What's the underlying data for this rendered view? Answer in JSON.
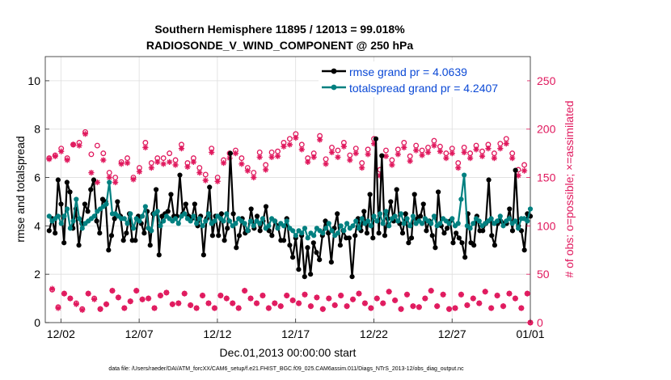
{
  "chart_data": {
    "type": "line",
    "title": "Southern Hemisphere 11895 / 12013 = 99.018%",
    "subtitle": "RADIOSONDE_V_WIND_COMPONENT @ 250 hPa",
    "xlabel": "Dec.01,2013 00:00:00 start",
    "ylabel": "rmse and totalspread",
    "y2label": "# of obs: o=possible; ×=assimilated",
    "footer": "data file: /Users/raeder/DAI/ATM_forcXX/CAM6_setup/f.e21.FHIST_BGC.f09_025.CAM6assim.011/Diags_NTrS_2013-12/obs_diag_output.nc",
    "xlim": [
      0,
      31
    ],
    "ylim": [
      0,
      11
    ],
    "y2lim": [
      0,
      275
    ],
    "x_ticks": [
      {
        "v": 1,
        "label": "12/02"
      },
      {
        "v": 6,
        "label": "12/07"
      },
      {
        "v": 11,
        "label": "12/12"
      },
      {
        "v": 16,
        "label": "12/17"
      },
      {
        "v": 21,
        "label": "12/22"
      },
      {
        "v": 26,
        "label": "12/27"
      },
      {
        "v": 31,
        "label": "01/01"
      }
    ],
    "y_ticks": [
      0,
      2,
      4,
      6,
      8,
      10
    ],
    "y2_ticks": [
      0,
      50,
      100,
      150,
      200,
      250
    ],
    "legend_position": "top-right",
    "series": [
      {
        "name": "rmse grand pr = 4.0639",
        "color": "#000000",
        "axis": "left",
        "marker": "circle",
        "values": [
          3.8,
          4.3,
          3.7,
          5.9,
          4.9,
          3.3,
          5.8,
          5.4,
          3.9,
          4.7,
          3.2,
          4.1,
          4.9,
          4.6,
          5.5,
          5.9,
          4.2,
          3.7,
          5.1,
          5.0,
          3.0,
          3.6,
          4.3,
          5.0,
          4.4,
          3.4,
          3.7,
          4.5,
          3.4,
          3.4,
          4.4,
          4.1,
          3.7,
          4.6,
          3.2,
          4.5,
          5.5,
          2.8,
          4.4,
          4.5,
          4.6,
          5.3,
          4.4,
          4.4,
          6.1,
          4.5,
          4.9,
          4.4,
          4.3,
          4.9,
          4.0,
          4.4,
          2.8,
          4.3,
          5.6,
          3.6,
          4.4,
          3.6,
          4.5,
          3.4,
          3.9,
          7.0,
          4.5,
          3.1,
          3.6,
          4.3,
          3.7,
          3.8,
          4.7,
          3.9,
          4.4,
          3.8,
          4.2,
          4.8,
          3.8,
          3.6,
          4.2,
          4.0,
          3.4,
          3.4,
          4.3,
          3.2,
          2.7,
          3.5,
          2.2,
          3.6,
          1.9,
          3.1,
          2.0,
          3.3,
          2.9,
          2.6,
          3.6,
          4.2,
          3.7,
          2.5,
          3.9,
          4.5,
          3.2,
          3.8,
          3.5,
          3.5,
          1.9,
          3.6,
          4.3,
          3.8,
          4.6,
          3.7,
          5.3,
          3.5,
          7.6,
          3.7,
          6.9,
          3.6,
          4.3,
          5.0,
          4.2,
          5.5,
          4.1,
          3.7,
          4.5,
          3.3,
          3.5,
          5.3,
          4.3,
          4.4,
          4.9,
          3.8,
          4.2,
          3.6,
          3.1,
          5.4,
          4.0,
          3.7,
          3.9,
          4.2,
          3.3,
          3.7,
          3.5,
          3.3,
          2.7,
          4.5,
          3.3,
          3.2,
          4.4,
          3.8,
          3.8,
          4.1,
          5.9,
          3.6,
          3.2,
          4.1,
          4.2,
          4.1,
          4.1,
          4.7,
          3.8,
          6.3,
          4.0,
          3.8,
          3.0,
          4.5,
          4.4
        ]
      },
      {
        "name": "totalspread grand pr = 4.2407",
        "color": "#008080",
        "axis": "left",
        "marker": "circle",
        "values": [
          4.4,
          4.2,
          4.3,
          4.4,
          4.1,
          4.4,
          4.7,
          3.9,
          4.2,
          5.1,
          4.3,
          3.9,
          4.1,
          4.2,
          4.3,
          4.4,
          4.6,
          4.7,
          4.8,
          4.9,
          5.8,
          4.5,
          4.5,
          4.4,
          4.3,
          4.3,
          4.1,
          4.5,
          3.9,
          4.3,
          4.2,
          4.4,
          4.8,
          3.9,
          3.8,
          4.5,
          4.6,
          4.0,
          4.2,
          4.4,
          4.3,
          4.2,
          4.3,
          4.1,
          4.4,
          4.5,
          4.3,
          4.2,
          4.4,
          4.1,
          4.3,
          4.0,
          4.2,
          4.5,
          4.1,
          4.2,
          4.4,
          4.3,
          4.2,
          4.5,
          4.2,
          4.0,
          4.1,
          4.3,
          4.2,
          4.1,
          3.8,
          4.2,
          4.0,
          4.2,
          4.1,
          4.3,
          3.9,
          4.0,
          4.3,
          4.2,
          3.9,
          4.1,
          4.0,
          4.2,
          3.9,
          3.8,
          3.6,
          3.8,
          3.7,
          3.9,
          3.5,
          3.7,
          3.6,
          3.9,
          3.8,
          3.7,
          3.9,
          4.1,
          3.8,
          3.6,
          3.7,
          4.0,
          3.8,
          4.1,
          3.9,
          4.0,
          4.2,
          3.9,
          4.3,
          4.1,
          4.2,
          4.0,
          4.4,
          4.2,
          4.5,
          4.1,
          4.6,
          4.0,
          4.3,
          4.4,
          4.2,
          4.5,
          4.1,
          4.3,
          4.0,
          4.4,
          4.1,
          4.2,
          4.1,
          4.3,
          4.2,
          4.1,
          4.4,
          4.0,
          4.1,
          4.3,
          4.2,
          4.1,
          4.3,
          4.0,
          4.1,
          5.1,
          6.1,
          4.0,
          3.9,
          4.1,
          4.3,
          4.2,
          4.0,
          4.1,
          4.2,
          4.3,
          4.1,
          4.2,
          4.4,
          4.0,
          4.2,
          4.3,
          4.1,
          4.2,
          3.9,
          4.3,
          4.3,
          4.2,
          4.7
        ]
      },
      {
        "name": "possible obs",
        "color": "#E0185D",
        "axis": "right",
        "marker": "circle-open",
        "values": [
          170,
          34,
          173,
          16,
          180,
          30,
          170,
          25,
          184,
          20,
          186,
          14,
          197,
          30,
          174,
          25,
          183,
          14,
          175,
          19,
          155,
          33,
          150,
          26,
          166,
          15,
          170,
          22,
          150,
          33,
          160,
          24,
          186,
          25,
          165,
          15,
          170,
          28,
          170,
          31,
          175,
          19,
          168,
          20,
          184,
          30,
          165,
          18,
          170,
          15,
          160,
          28,
          153,
          20,
          180,
          15,
          150,
          28,
          168,
          25,
          175,
          20,
          178,
          15,
          170,
          33,
          160,
          25,
          155,
          20,
          176,
          28,
          163,
          15,
          176,
          20,
          177,
          17,
          186,
          28,
          190,
          23,
          195,
          20,
          184,
          29,
          170,
          17,
          175,
          26,
          193,
          14,
          169,
          25,
          181,
          18,
          178,
          28,
          186,
          17,
          173,
          24,
          180,
          30,
          165,
          20,
          179,
          15,
          190,
          25,
          158,
          20,
          178,
          32,
          168,
          23,
          179,
          14,
          186,
          29,
          172,
          17,
          183,
          16,
          178,
          25,
          181,
          33,
          188,
          17,
          182,
          29,
          175,
          14,
          180,
          15,
          165,
          29,
          181,
          18,
          175,
          25,
          183,
          20,
          177,
          32,
          184,
          15,
          175,
          28,
          185,
          17,
          190,
          30,
          175,
          25,
          158,
          15,
          163,
          30,
          0
        ]
      },
      {
        "name": "assimilated obs",
        "color": "#E0185D",
        "axis": "right",
        "marker": "asterisk",
        "values": [
          169,
          35,
          172,
          15,
          177,
          30,
          168,
          25,
          184,
          19,
          183,
          13,
          195,
          30,
          155,
          24,
          145,
          14,
          168,
          19,
          150,
          33,
          145,
          26,
          164,
          15,
          165,
          22,
          148,
          33,
          156,
          24,
          181,
          25,
          160,
          15,
          166,
          28,
          164,
          31,
          166,
          19,
          163,
          20,
          180,
          30,
          161,
          18,
          166,
          15,
          155,
          28,
          147,
          20,
          176,
          15,
          146,
          28,
          165,
          25,
          170,
          20,
          175,
          15,
          164,
          33,
          157,
          25,
          150,
          20,
          171,
          28,
          158,
          15,
          171,
          20,
          172,
          17,
          182,
          28,
          184,
          23,
          191,
          20,
          179,
          29,
          166,
          17,
          171,
          26,
          189,
          14,
          164,
          25,
          176,
          18,
          171,
          28,
          182,
          17,
          168,
          24,
          175,
          30,
          160,
          20,
          174,
          15,
          185,
          25,
          152,
          20,
          172,
          32,
          163,
          23,
          174,
          14,
          181,
          29,
          167,
          17,
          178,
          16,
          173,
          25,
          176,
          33,
          183,
          17,
          177,
          29,
          170,
          14,
          175,
          15,
          160,
          29,
          176,
          18,
          170,
          25,
          179,
          20,
          172,
          32,
          180,
          15,
          170,
          28,
          180,
          17,
          185,
          30,
          170,
          25,
          152,
          15,
          157,
          30,
          0
        ]
      }
    ]
  }
}
